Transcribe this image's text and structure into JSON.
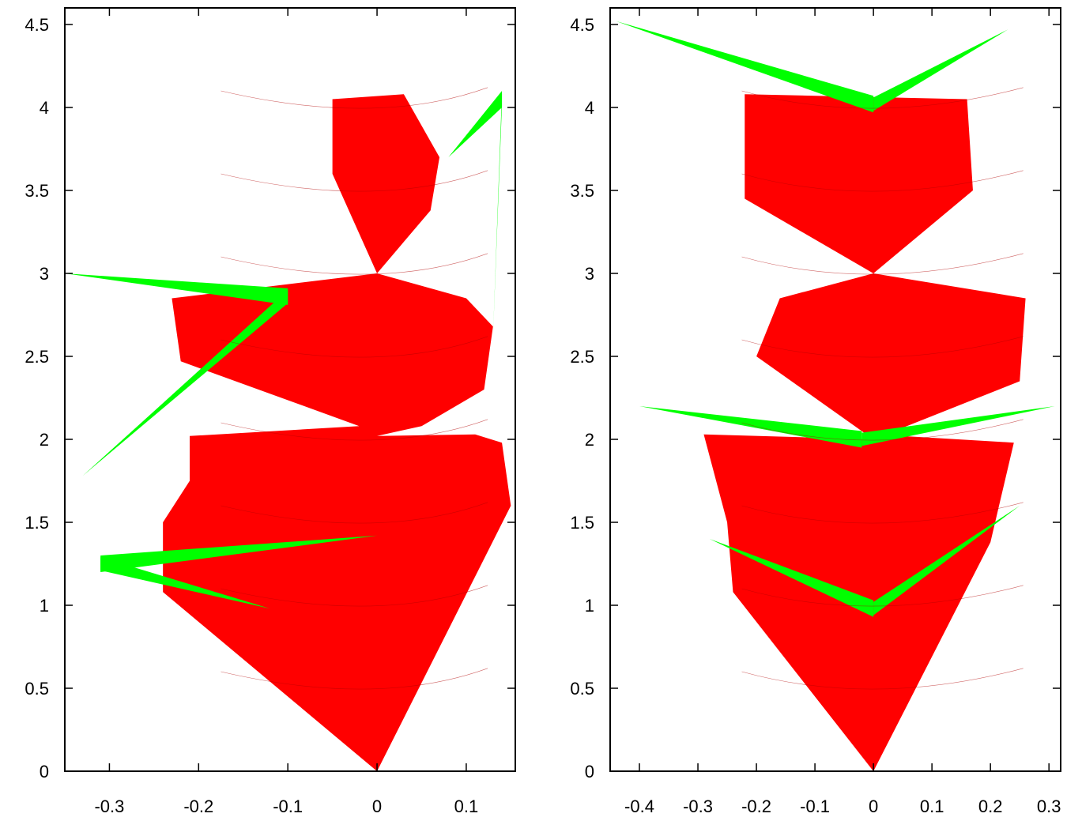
{
  "chart_data": [
    {
      "type": "area",
      "title": "",
      "xlabel": "",
      "ylabel": "",
      "xlim": [
        -0.35,
        0.155
      ],
      "ylim": [
        0,
        4.6
      ],
      "xticks": [
        -0.3,
        -0.2,
        -0.1,
        0,
        0.1
      ],
      "xtick_labels": [
        "-0.3",
        "-0.2",
        "-0.1",
        "0",
        "0.1"
      ],
      "yticks": [
        0,
        0.5,
        1,
        1.5,
        2,
        2.5,
        3,
        3.5,
        4,
        4.5
      ],
      "ytick_labels": [
        "0",
        "0.5",
        "1",
        "1.5",
        "2",
        "2.5",
        "3",
        "3.5",
        "4",
        "4.5"
      ],
      "grid": false,
      "legend": "none",
      "colors": {
        "fill": "#ff0000",
        "fringe": "#00ff00",
        "edge": "#0000ff"
      },
      "series": [
        {
          "color": "#ff0000",
          "values": [
            [
              0,
              0
            ],
            [
              0.15,
              1.6
            ],
            [
              0.14,
              1.98
            ],
            [
              0.11,
              2.03
            ],
            [
              0,
              2.02
            ],
            [
              0.05,
              2.08
            ],
            [
              0.12,
              2.3
            ],
            [
              0.13,
              2.68
            ],
            [
              0.1,
              2.85
            ],
            [
              0.0,
              3.0
            ],
            [
              0.06,
              3.38
            ],
            [
              0.07,
              3.7
            ],
            [
              0.03,
              4.08
            ],
            [
              -0.05,
              4.05
            ],
            [
              -0.05,
              3.6
            ],
            [
              0.0,
              3.0
            ],
            [
              -0.23,
              2.85
            ],
            [
              -0.22,
              2.47
            ],
            [
              -0.02,
              2.08
            ],
            [
              -0.21,
              2.02
            ],
            [
              -0.21,
              1.75
            ],
            [
              -0.24,
              1.5
            ],
            [
              -0.24,
              1.08
            ],
            [
              0,
              0
            ]
          ]
        },
        {
          "color": "#00ff00",
          "values": [
            [
              -0.35,
              3.0
            ],
            [
              -0.1,
              2.86
            ],
            [
              -0.33,
              1.78
            ],
            [
              0.0,
              1.42
            ],
            [
              -0.31,
              1.25
            ],
            [
              -0.12,
              0.98
            ],
            [
              0.08,
              3.7
            ],
            [
              0.14,
              4.05
            ],
            [
              0.13,
              2.62
            ]
          ]
        }
      ]
    },
    {
      "type": "area",
      "title": "",
      "xlabel": "",
      "ylabel": "",
      "xlim": [
        -0.45,
        0.32
      ],
      "ylim": [
        0,
        4.6
      ],
      "xticks": [
        -0.4,
        -0.3,
        -0.2,
        -0.1,
        0,
        0.1,
        0.2,
        0.3
      ],
      "xtick_labels": [
        "-0.4",
        "-0.3",
        "-0.2",
        "-0.1",
        "0",
        "0.1",
        "0.2",
        "0.3"
      ],
      "yticks": [
        0,
        0.5,
        1,
        1.5,
        2,
        2.5,
        3,
        3.5,
        4,
        4.5
      ],
      "ytick_labels": [
        "0",
        "0.5",
        "1",
        "1.5",
        "2",
        "2.5",
        "3",
        "3.5",
        "4",
        "4.5"
      ],
      "grid": false,
      "legend": "none",
      "colors": {
        "fill": "#ff0000",
        "fringe": "#00ff00",
        "edge": "#0000ff"
      },
      "series": [
        {
          "color": "#ff0000",
          "values": [
            [
              0,
              0
            ],
            [
              0.2,
              1.38
            ],
            [
              0.24,
              1.98
            ],
            [
              0.05,
              2.02
            ],
            [
              0.0,
              2.0
            ],
            [
              0.25,
              2.35
            ],
            [
              0.26,
              2.85
            ],
            [
              0.0,
              3.0
            ],
            [
              0.17,
              3.5
            ],
            [
              0.16,
              4.05
            ],
            [
              -0.22,
              4.08
            ],
            [
              -0.22,
              3.45
            ],
            [
              0.0,
              3.0
            ],
            [
              -0.16,
              2.85
            ],
            [
              -0.2,
              2.5
            ],
            [
              0.0,
              2.0
            ],
            [
              -0.29,
              2.03
            ],
            [
              -0.25,
              1.5
            ],
            [
              -0.24,
              1.08
            ],
            [
              0,
              0
            ]
          ]
        },
        {
          "color": "#00ff00",
          "values": [
            [
              -0.44,
              4.52
            ],
            [
              0.0,
              4.02
            ],
            [
              0.23,
              4.47
            ],
            [
              -0.4,
              2.2
            ],
            [
              -0.02,
              2.0
            ],
            [
              0.31,
              2.2
            ],
            [
              -0.28,
              1.4
            ],
            [
              0.0,
              0.98
            ],
            [
              0.25,
              1.6
            ]
          ]
        }
      ]
    }
  ]
}
